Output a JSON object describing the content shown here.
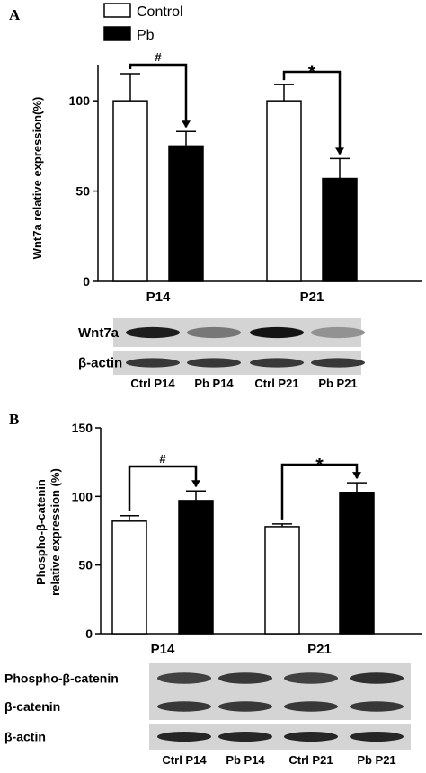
{
  "legend": {
    "items": [
      {
        "label": "Control",
        "fill": "#ffffff"
      },
      {
        "label": "Pb",
        "fill": "#000000"
      }
    ]
  },
  "chart_data": [
    {
      "panel_label": "A",
      "type": "bar",
      "categories": [
        "P14",
        "P21"
      ],
      "series": [
        {
          "name": "Control",
          "values": [
            100,
            100
          ],
          "errors": [
            15,
            9
          ]
        },
        {
          "name": "Pb",
          "values": [
            75,
            57
          ],
          "errors": [
            8,
            11
          ]
        }
      ],
      "ylabel": "Wnt7a relative expression(%)",
      "ylim": [
        0,
        120
      ],
      "yticks": [
        0,
        50,
        100
      ],
      "significance": [
        "#",
        "*"
      ]
    },
    {
      "panel_label": "B",
      "type": "bar",
      "categories": [
        "P14",
        "P21"
      ],
      "series": [
        {
          "name": "Control",
          "values": [
            82,
            78
          ],
          "errors": [
            4,
            2
          ]
        },
        {
          "name": "Pb",
          "values": [
            97,
            103
          ],
          "errors": [
            7,
            7
          ]
        }
      ],
      "ylabel": [
        "Phospho-β-catenin",
        "relative expression (%)"
      ],
      "ylim": [
        0,
        150
      ],
      "yticks": [
        0,
        50,
        100,
        150
      ],
      "significance": [
        "#",
        "*"
      ]
    }
  ],
  "blots": [
    {
      "rows": [
        {
          "label": "Wnt7a",
          "bands": [
            0.95,
            0.45,
            1.0,
            0.3
          ]
        },
        {
          "label": "β-actin",
          "bands": [
            0.8,
            0.8,
            0.8,
            0.8
          ]
        }
      ],
      "lanes": [
        "Ctrl P14",
        "Pb P14",
        "Ctrl P21",
        "Pb P21"
      ]
    },
    {
      "rows": [
        {
          "label": "Phospho-β-catenin",
          "bands": [
            0.75,
            0.8,
            0.75,
            0.85
          ]
        },
        {
          "label": "β-catenin",
          "bands": [
            0.8,
            0.8,
            0.8,
            0.8
          ]
        },
        {
          "label": "β-actin",
          "bands": [
            0.9,
            0.9,
            0.9,
            0.9
          ]
        }
      ],
      "lanes": [
        "Ctrl P14",
        "Pb P14",
        "Ctrl P21",
        "Pb P21"
      ]
    }
  ]
}
